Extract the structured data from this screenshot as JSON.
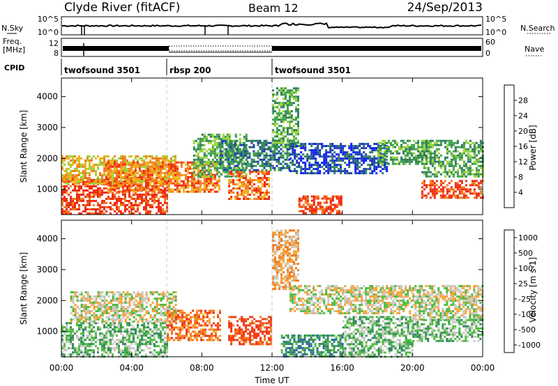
{
  "header": {
    "site": "Clyde River (fitACF)",
    "beam": "Beam 12",
    "date": "24/Sep/2013"
  },
  "sky_panel": {
    "label": "N.Sky",
    "tick_top": "10^5",
    "tick_bottom": "10^0",
    "right_label": "N.Search",
    "right_tick_top": "10^5",
    "right_tick_bottom": "10^0"
  },
  "freq_panel": {
    "label_line1": "Freq.",
    "label_line2": "[MHz]",
    "tick_top": "12",
    "tick_bottom": "8",
    "right_label": "Nave",
    "right_tick_top": "60",
    "right_tick_bottom": "0"
  },
  "cpid": {
    "label": "CPID",
    "segments": [
      {
        "name": "twofsound 3501",
        "start_h": 0,
        "end_h": 6
      },
      {
        "name": "rbsp 200",
        "start_h": 6,
        "end_h": 12
      },
      {
        "name": "twofsound 3501",
        "start_h": 12,
        "end_h": 24
      }
    ]
  },
  "x_axis": {
    "label": "Time UT",
    "ticks": [
      "00:00",
      "04:00",
      "08:00",
      "12:00",
      "16:00",
      "20:00",
      "00:00"
    ],
    "tick_hours": [
      0,
      4,
      8,
      12,
      16,
      20,
      24
    ]
  },
  "power_panel": {
    "ylabel": "Slant Range [km]",
    "yticks": [
      "1000",
      "2000",
      "3000",
      "4000"
    ],
    "colorbar_label": "Power [dB]",
    "colorbar_ticks": [
      "4",
      "8",
      "12",
      "16",
      "20",
      "24",
      "28"
    ],
    "colors": [
      "#0a1cff",
      "#1f40a8",
      "#2f7d5e",
      "#3da24a",
      "#9ad33a",
      "#f2b11a",
      "#f47a1c",
      "#ee2a10"
    ]
  },
  "velocity_panel": {
    "ylabel": "Slant Range [km]",
    "yticks": [
      "1000",
      "2000",
      "3000",
      "4000"
    ],
    "colorbar_label": "Velocity [m s-1]",
    "colorbar_ticks": [
      "1000",
      "500",
      "100",
      "25",
      "-25",
      "-100",
      "-500",
      "-1000"
    ],
    "colors": [
      "#1a2fd0",
      "#2f63a8",
      "#2f8a5a",
      "#4cbb3f",
      "#c8c8c0",
      "#f5a23a",
      "#f37818",
      "#ee3a18"
    ]
  },
  "chart_data": {
    "type": "heatmap",
    "x_range_hours": [
      0,
      24
    ],
    "y_range_km": [
      180,
      4600
    ],
    "power_regions": [
      {
        "t0": 0.0,
        "t1": 6.0,
        "r0": 200,
        "r1": 1400,
        "level": 7
      },
      {
        "t0": 0.0,
        "t1": 6.5,
        "r0": 1200,
        "r1": 2100,
        "level": 5
      },
      {
        "t0": 2.5,
        "t1": 9.0,
        "r0": 900,
        "r1": 1900,
        "level": 6
      },
      {
        "t0": 7.5,
        "t1": 10.5,
        "r0": 1400,
        "r1": 2800,
        "level": 3
      },
      {
        "t0": 9.5,
        "t1": 11.8,
        "r0": 700,
        "r1": 1600,
        "level": 6
      },
      {
        "t0": 9.0,
        "t1": 13.0,
        "r0": 1600,
        "r1": 2600,
        "level": 2
      },
      {
        "t0": 12.0,
        "t1": 13.5,
        "r0": 2400,
        "r1": 4300,
        "level": 3
      },
      {
        "t0": 13.5,
        "t1": 16.0,
        "r0": 200,
        "r1": 800,
        "level": 7
      },
      {
        "t0": 13.0,
        "t1": 18.5,
        "r0": 1500,
        "r1": 2500,
        "level": 1
      },
      {
        "t0": 18.0,
        "t1": 21.0,
        "r0": 1800,
        "r1": 2600,
        "level": 3
      },
      {
        "t0": 20.5,
        "t1": 24.0,
        "r0": 700,
        "r1": 1300,
        "level": 7
      },
      {
        "t0": 20.5,
        "t1": 24.0,
        "r0": 1400,
        "r1": 2600,
        "level": 3
      }
    ],
    "velocity_regions": [
      {
        "t0": 0.0,
        "t1": 6.0,
        "r0": 200,
        "r1": 1300,
        "level": 3
      },
      {
        "t0": 0.5,
        "t1": 6.5,
        "r0": 1300,
        "r1": 2300,
        "level": 4
      },
      {
        "t0": 6.0,
        "t1": 9.0,
        "r0": 700,
        "r1": 1700,
        "level": 6
      },
      {
        "t0": 9.5,
        "t1": 12.0,
        "r0": 600,
        "r1": 1500,
        "level": 7
      },
      {
        "t0": 12.0,
        "t1": 13.5,
        "r0": 2400,
        "r1": 4300,
        "level": 5
      },
      {
        "t0": 12.5,
        "t1": 16.0,
        "r0": 200,
        "r1": 900,
        "level": 2
      },
      {
        "t0": 13.0,
        "t1": 20.0,
        "r0": 1600,
        "r1": 2500,
        "level": 4
      },
      {
        "t0": 16.0,
        "t1": 20.0,
        "r0": 200,
        "r1": 1500,
        "level": 3
      },
      {
        "t0": 20.0,
        "t1": 24.0,
        "r0": 1400,
        "r1": 2500,
        "level": 4
      },
      {
        "t0": 20.0,
        "t1": 24.0,
        "r0": 700,
        "r1": 1400,
        "level": 3
      }
    ],
    "mode_change_hours": [
      6,
      12
    ]
  }
}
